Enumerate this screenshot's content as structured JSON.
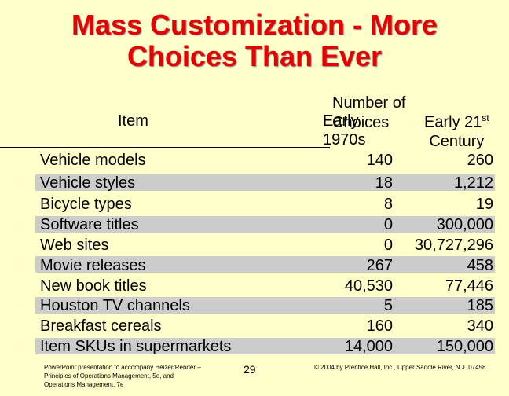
{
  "title": {
    "line1": "Mass Customization - More",
    "line2": "Choices Than Ever"
  },
  "header": {
    "item": "Item",
    "number_of_choices": "Number of Choices",
    "early_1970s_line1": "Early",
    "early_1970s_line2": "1970s",
    "early_21st_line1": "Early 21",
    "early_21st_sup": "st",
    "early_21st_line2": "Century"
  },
  "rows": [
    {
      "item": "Vehicle models",
      "early_1970s": "140",
      "early_21st": "260"
    },
    {
      "item": "Vehicle styles",
      "early_1970s": "18",
      "early_21st": "1,212"
    },
    {
      "item": "Bicycle types",
      "early_1970s": "8",
      "early_21st": "19"
    },
    {
      "item": "Software titles",
      "early_1970s": "0",
      "early_21st": "300,000"
    },
    {
      "item": "Web sites",
      "early_1970s": "0",
      "early_21st": "30,727,296"
    },
    {
      "item": "Movie releases",
      "early_1970s": "267",
      "early_21st": "458"
    },
    {
      "item": "New book titles",
      "early_1970s": "40,530",
      "early_21st": "77,446"
    },
    {
      "item": "Houston TV channels",
      "early_1970s": "5",
      "early_21st": "185"
    },
    {
      "item": "Breakfast cereals",
      "early_1970s": "160",
      "early_21st": "340"
    },
    {
      "item": "Item SKUs in supermarkets",
      "early_1970s": "14,000",
      "early_21st": "150,000"
    }
  ],
  "footer": {
    "left": "PowerPoint presentation to accompany Heizer/Render – Principles of Operations Management, 5e, and Operations Management, 7e",
    "page": "29",
    "right": "© 2004 by Prentice Hall, Inc., Upper Saddle River, N.J. 07458"
  }
}
